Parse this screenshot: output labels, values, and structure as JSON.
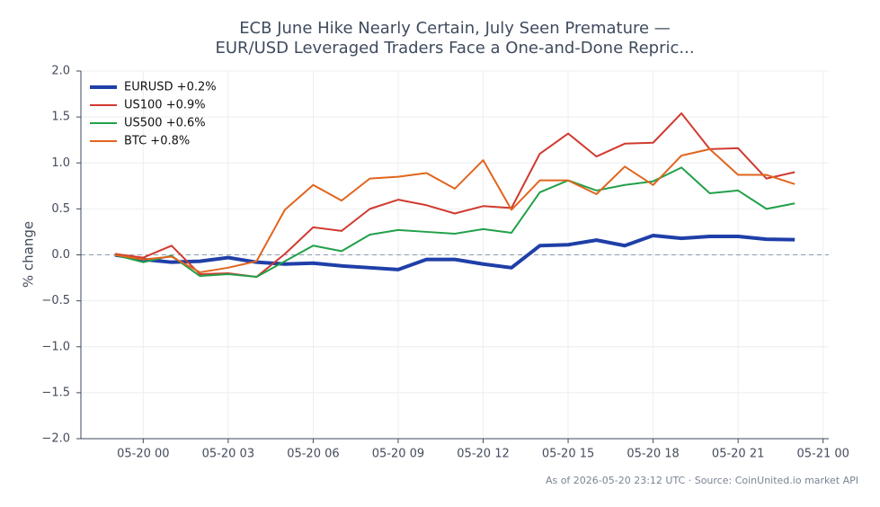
{
  "chart_data": {
    "type": "line",
    "title": [
      "ECB June Hike Nearly Certain, July Seen Premature —",
      "EUR/USD Leveraged Traders Face a One-and-Done Repric..."
    ],
    "ylabel": "% change",
    "footer": "As of 2026-05-20 23:12 UTC · Source: CoinUnited.io market API",
    "x": [
      -1,
      0,
      1,
      2,
      3,
      4,
      5,
      6,
      7,
      8,
      9,
      10,
      11,
      12,
      13,
      14,
      15,
      16,
      17,
      18,
      19,
      20,
      21,
      22,
      23
    ],
    "xlim": [
      -2.2,
      24.2
    ],
    "xticks": [
      {
        "value": 0,
        "label": "05-20 00"
      },
      {
        "value": 3,
        "label": "05-20 03"
      },
      {
        "value": 6,
        "label": "05-20 06"
      },
      {
        "value": 9,
        "label": "05-20 09"
      },
      {
        "value": 12,
        "label": "05-20 12"
      },
      {
        "value": 15,
        "label": "05-20 15"
      },
      {
        "value": 18,
        "label": "05-20 18"
      },
      {
        "value": 21,
        "label": "05-20 21"
      },
      {
        "value": 24,
        "label": "05-21 00"
      }
    ],
    "ylim": [
      -2,
      2
    ],
    "yticks": [
      {
        "value": -2,
        "label": "−2.0"
      },
      {
        "value": -1.5,
        "label": "−1.5"
      },
      {
        "value": -1,
        "label": "−1.0"
      },
      {
        "value": -0.5,
        "label": "−0.5"
      },
      {
        "value": 0,
        "label": "0.0"
      },
      0.5,
      {
        "value": 1,
        "label": "1.0"
      },
      1.5,
      {
        "value": 2,
        "label": "2.0"
      }
    ],
    "grid": true,
    "legend": "upper-left",
    "hline": 0,
    "series": [
      {
        "name": "EURUSD +0.2%",
        "color": "#1f3fa8",
        "linewidth": 4,
        "values": [
          0.0,
          -0.05,
          -0.08,
          -0.07,
          -0.03,
          -0.08,
          -0.1,
          -0.09,
          -0.12,
          -0.14,
          -0.16,
          -0.05,
          -0.05,
          -0.1,
          -0.14,
          0.1,
          0.11,
          0.16,
          0.1,
          0.21,
          0.18,
          0.2,
          0.2,
          0.17,
          0.165
        ]
      },
      {
        "name": "US100 +0.9%",
        "color": "#d03a30",
        "linewidth": 2,
        "values": [
          0.01,
          -0.03,
          0.1,
          -0.21,
          -0.2,
          -0.24,
          0.01,
          0.3,
          0.26,
          0.5,
          0.6,
          0.54,
          0.45,
          0.53,
          0.51,
          1.1,
          1.32,
          1.07,
          1.21,
          1.22,
          1.54,
          1.15,
          1.16,
          0.83,
          0.9
        ]
      },
      {
        "name": "US500 +0.6%",
        "color": "#22a04a",
        "linewidth": 2,
        "values": [
          0.0,
          -0.08,
          -0.01,
          -0.23,
          -0.21,
          -0.24,
          -0.07,
          0.1,
          0.04,
          0.22,
          0.27,
          0.25,
          0.23,
          0.28,
          0.24,
          0.68,
          0.81,
          0.7,
          0.76,
          0.8,
          0.95,
          0.67,
          0.7,
          0.5,
          0.56
        ]
      },
      {
        "name": "BTC +0.8%",
        "color": "#e0651e",
        "linewidth": 2,
        "values": [
          0.0,
          -0.05,
          -0.02,
          -0.19,
          -0.14,
          -0.07,
          0.49,
          0.76,
          0.59,
          0.83,
          0.85,
          0.89,
          0.72,
          1.03,
          0.49,
          0.81,
          0.81,
          0.66,
          0.96,
          0.76,
          1.08,
          1.15,
          0.87,
          0.87,
          0.77
        ]
      }
    ]
  }
}
